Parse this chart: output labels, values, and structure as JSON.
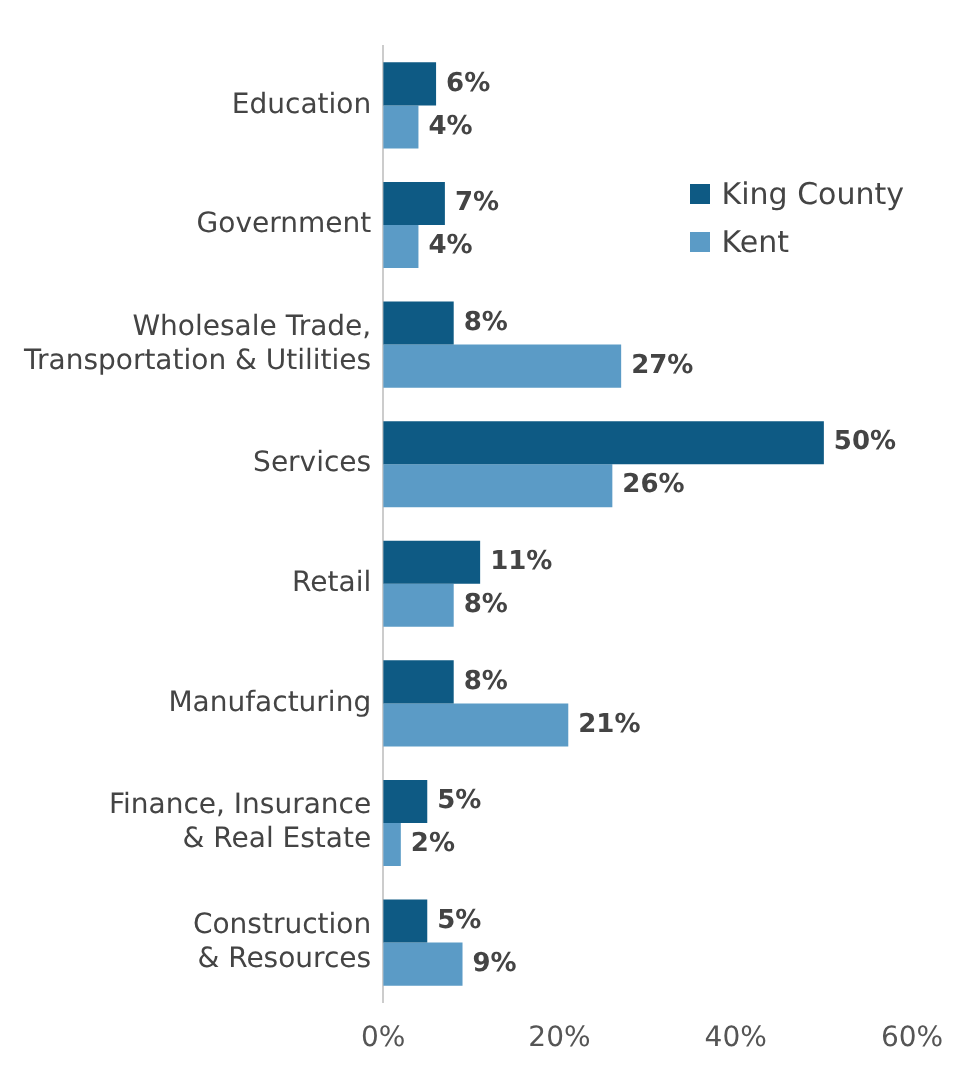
{
  "chart_data": {
    "type": "bar",
    "orientation": "horizontal",
    "categories": [
      "Education",
      "Government",
      "Wholesale Trade,\nTransportation & Utilities",
      "Services",
      "Retail",
      "Manufacturing",
      "Finance, Insurance\n& Real Estate",
      "Construction\n& Resources"
    ],
    "series": [
      {
        "name": "King County",
        "color": "#0e5a84",
        "values": [
          6,
          7,
          8,
          50,
          11,
          8,
          5,
          5
        ],
        "value_labels": [
          "6%",
          "7%",
          "8%",
          "50%",
          "11%",
          "8%",
          "5%",
          "5%"
        ]
      },
      {
        "name": "Kent",
        "color": "#5b9bc6",
        "values": [
          4,
          4,
          27,
          26,
          8,
          21,
          2,
          9
        ],
        "value_labels": [
          "4%",
          "4%",
          "27%",
          "26%",
          "8%",
          "21%",
          "2%",
          "9%"
        ]
      }
    ],
    "xlim": [
      0,
      60
    ],
    "xticks": [
      {
        "value": 0,
        "label": "0%"
      },
      {
        "value": 20,
        "label": "20%"
      },
      {
        "value": 40,
        "label": "40%"
      },
      {
        "value": 60,
        "label": "60%"
      }
    ],
    "grid": false,
    "legend": "top right"
  }
}
